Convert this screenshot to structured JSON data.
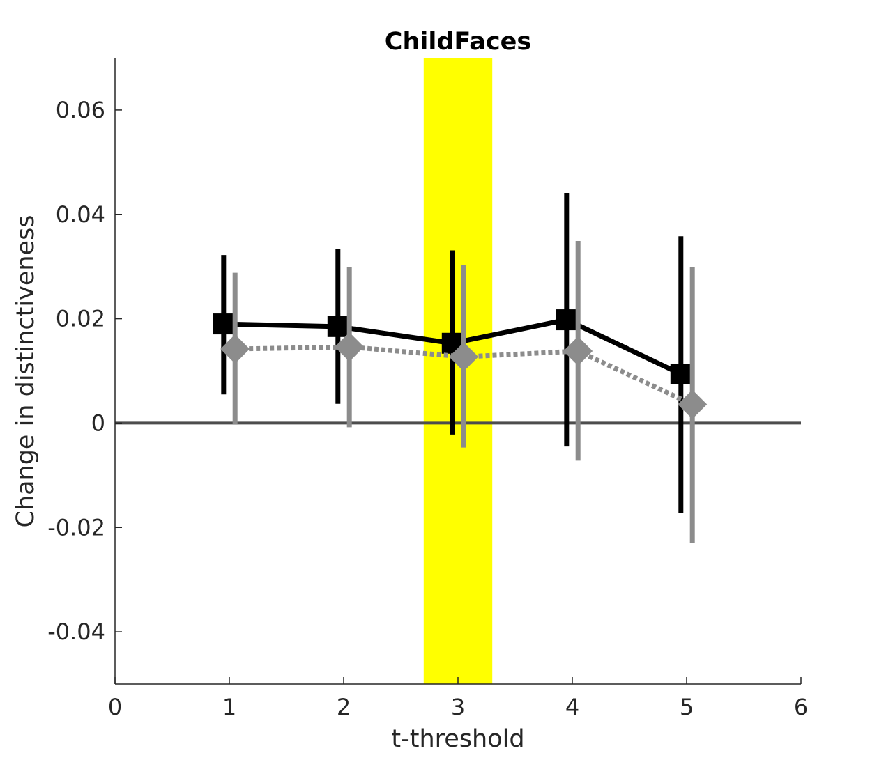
{
  "chart_data": {
    "type": "line",
    "title": "ChildFaces",
    "xlabel": "t-threshold",
    "ylabel": "Change in distinctiveness",
    "xlim": [
      0,
      6
    ],
    "ylim": [
      -0.05,
      0.07
    ],
    "xticks": [
      0,
      1,
      2,
      3,
      4,
      5,
      6
    ],
    "xtick_labels": [
      "0",
      "1",
      "2",
      "3",
      "4",
      "5",
      "6"
    ],
    "yticks": [
      -0.04,
      -0.02,
      0,
      0.02,
      0.04,
      0.06
    ],
    "ytick_labels": [
      "-0.04",
      "-0.02",
      "0",
      "0.02",
      "0.04",
      "0.06"
    ],
    "grid": false,
    "highlight_band": {
      "x_range": [
        2.7,
        3.3
      ],
      "color": "#ffff00"
    },
    "reference_line": {
      "y": 0,
      "color": "#4d4d4d"
    },
    "series": [
      {
        "marker": "square",
        "line_style": "solid",
        "color": "#000000",
        "x": [
          0.95,
          1.95,
          2.95,
          3.95,
          4.95
        ],
        "y": [
          0.019,
          0.0185,
          0.0153,
          0.0198,
          0.0094
        ],
        "err_low": [
          0.0055,
          0.0037,
          -0.0022,
          -0.0045,
          -0.0172
        ],
        "err_high": [
          0.0322,
          0.0333,
          0.0331,
          0.0441,
          0.0358
        ]
      },
      {
        "marker": "diamond",
        "line_style": "dotted",
        "color": "#8c8c8c",
        "x": [
          1.05,
          2.05,
          3.05,
          4.05,
          5.05
        ],
        "y": [
          0.0142,
          0.0146,
          0.0127,
          0.0138,
          0.0036
        ],
        "err_low": [
          -0.0003,
          -0.0008,
          -0.0047,
          -0.0072,
          -0.0229
        ],
        "err_high": [
          0.0288,
          0.0299,
          0.0303,
          0.0349,
          0.0299
        ]
      }
    ]
  }
}
